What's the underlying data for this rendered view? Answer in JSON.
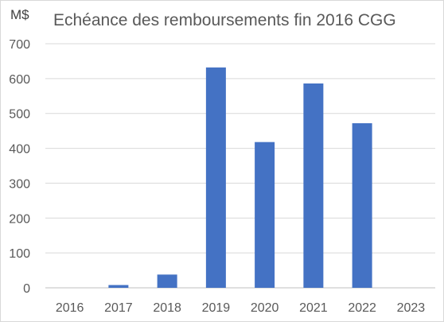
{
  "chart_data": {
    "type": "bar",
    "title": "Echéance des remboursements fin 2016 CGG",
    "ylabel": "M$",
    "xlabel": "",
    "categories": [
      "2016",
      "2017",
      "2018",
      "2019",
      "2020",
      "2021",
      "2022",
      "2023"
    ],
    "values": [
      0,
      8,
      38,
      632,
      418,
      586,
      472,
      0
    ],
    "ylim": [
      0,
      700
    ],
    "yticks": [
      0,
      100,
      200,
      300,
      400,
      500,
      600,
      700
    ],
    "grid": true,
    "legend": "none",
    "bar_color": "#4472C4"
  }
}
